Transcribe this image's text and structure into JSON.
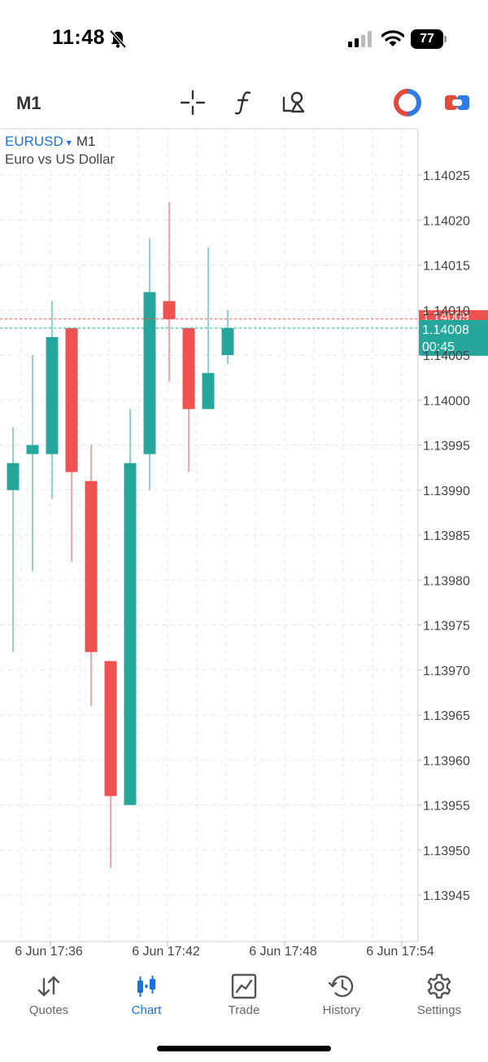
{
  "status_bar": {
    "time": "11:48",
    "battery": "77"
  },
  "toolbar": {
    "timeframe": "M1",
    "icons": [
      "crosshair-icon",
      "indicators-icon",
      "objects-icon",
      "account-icon",
      "trade-panel-icon"
    ]
  },
  "chart_header": {
    "symbol": "EURUSD",
    "caret": "▾",
    "timeframe": "M1",
    "description": "Euro vs US Dollar"
  },
  "chart_data": {
    "type": "candlestick",
    "ylim": [
      1.1394,
      1.1403
    ],
    "y_ticks": [
      "1.14025",
      "1.14020",
      "1.14015",
      "1.14010",
      "1.14005",
      "1.14000",
      "1.13995",
      "1.13990",
      "1.13985",
      "1.13980",
      "1.13975",
      "1.13970",
      "1.13965",
      "1.13960",
      "1.13955",
      "1.13950",
      "1.13945"
    ],
    "x_ticks": [
      "6 Jun 17:36",
      "6 Jun 17:42",
      "6 Jun 17:48",
      "6 Jun 17:54"
    ],
    "candles": [
      {
        "open": 1.1399,
        "high": 1.13997,
        "low": 1.13972,
        "close": 1.13993
      },
      {
        "open": 1.13994,
        "high": 1.14005,
        "low": 1.13981,
        "close": 1.13995
      },
      {
        "open": 1.13994,
        "high": 1.14011,
        "low": 1.13989,
        "close": 1.14007
      },
      {
        "open": 1.14008,
        "high": 1.14008,
        "low": 1.13982,
        "close": 1.13992
      },
      {
        "open": 1.13991,
        "high": 1.13995,
        "low": 1.13966,
        "close": 1.13972
      },
      {
        "open": 1.13971,
        "high": 1.13971,
        "low": 1.13948,
        "close": 1.13956
      },
      {
        "open": 1.13955,
        "high": 1.13999,
        "low": 1.13955,
        "close": 1.13993
      },
      {
        "open": 1.13994,
        "high": 1.14018,
        "low": 1.1399,
        "close": 1.14012
      },
      {
        "open": 1.14011,
        "high": 1.14022,
        "low": 1.14002,
        "close": 1.14009
      },
      {
        "open": 1.14008,
        "high": 1.14008,
        "low": 1.13992,
        "close": 1.13999
      },
      {
        "open": 1.13999,
        "high": 1.14017,
        "low": 1.13999,
        "close": 1.14003
      },
      {
        "open": 1.14005,
        "high": 1.1401,
        "low": 1.14004,
        "close": 1.14008
      }
    ],
    "ask_price": "1.14009",
    "bid_price": "1.14008",
    "bid_countdown": "00:45",
    "colors": {
      "up": "#26a69a",
      "down": "#ef5350",
      "ask": "#ef5350",
      "bid": "#26a69a",
      "grid": "#e6e6e6"
    },
    "grid": true
  },
  "bottom_nav": {
    "items": [
      {
        "label": "Quotes",
        "icon": "quotes-icon",
        "active": false
      },
      {
        "label": "Chart",
        "icon": "chart-icon",
        "active": true
      },
      {
        "label": "Trade",
        "icon": "trade-icon",
        "active": false
      },
      {
        "label": "History",
        "icon": "history-icon",
        "active": false
      },
      {
        "label": "Settings",
        "icon": "settings-icon",
        "active": false
      }
    ]
  }
}
